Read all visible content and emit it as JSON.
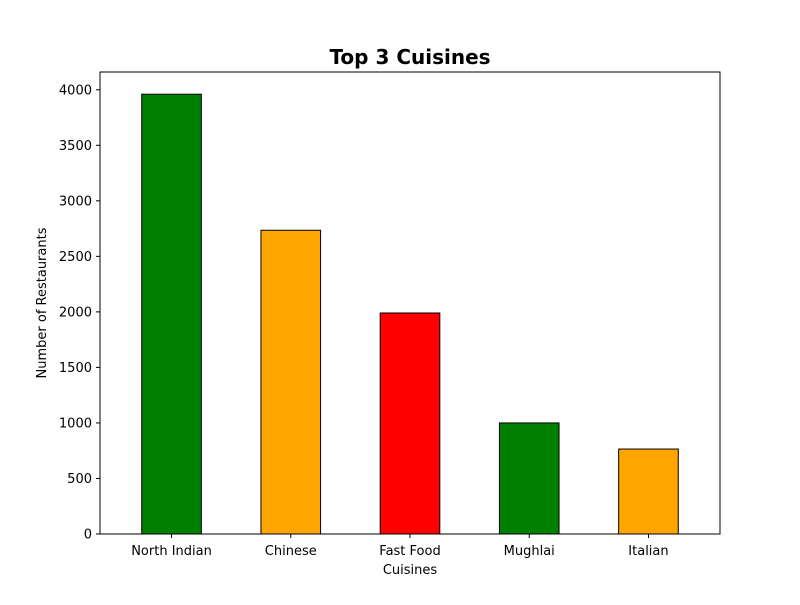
{
  "chart_data": {
    "type": "bar",
    "title": "Top 3 Cuisines",
    "xlabel": "Cuisines",
    "ylabel": "Number of Restaurants",
    "categories": [
      "North Indian",
      "Chinese",
      "Fast Food",
      "Mughlai",
      "Italian"
    ],
    "values": [
      3960,
      2735,
      1990,
      1000,
      765
    ],
    "bar_colors": [
      "#008000",
      "#ffa500",
      "#ff0000",
      "#008000",
      "#ffa500"
    ],
    "bar_edge_color": "#000000",
    "ylim": [
      0,
      4160
    ],
    "yticks": [
      0,
      500,
      1000,
      1500,
      2000,
      2500,
      3000,
      3500,
      4000
    ],
    "grid": false,
    "legend": "none"
  }
}
